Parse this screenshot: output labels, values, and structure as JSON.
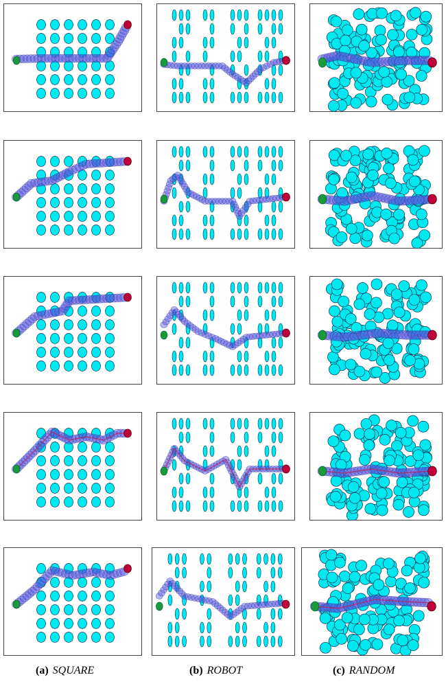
{
  "captions": [
    {
      "label": "(a)",
      "name": "SQUARE"
    },
    {
      "label": "(b)",
      "name": "ROBOT"
    },
    {
      "label": "(c)",
      "name": "RANDOM"
    }
  ],
  "colors": {
    "obstacle": "#00e8f0",
    "start": "#1a9a3a",
    "goal": "#c0003a",
    "path": "#5a5ae0",
    "path_line": "#c02050"
  },
  "columns": [
    "square",
    "robot",
    "random"
  ],
  "rows": 5
}
